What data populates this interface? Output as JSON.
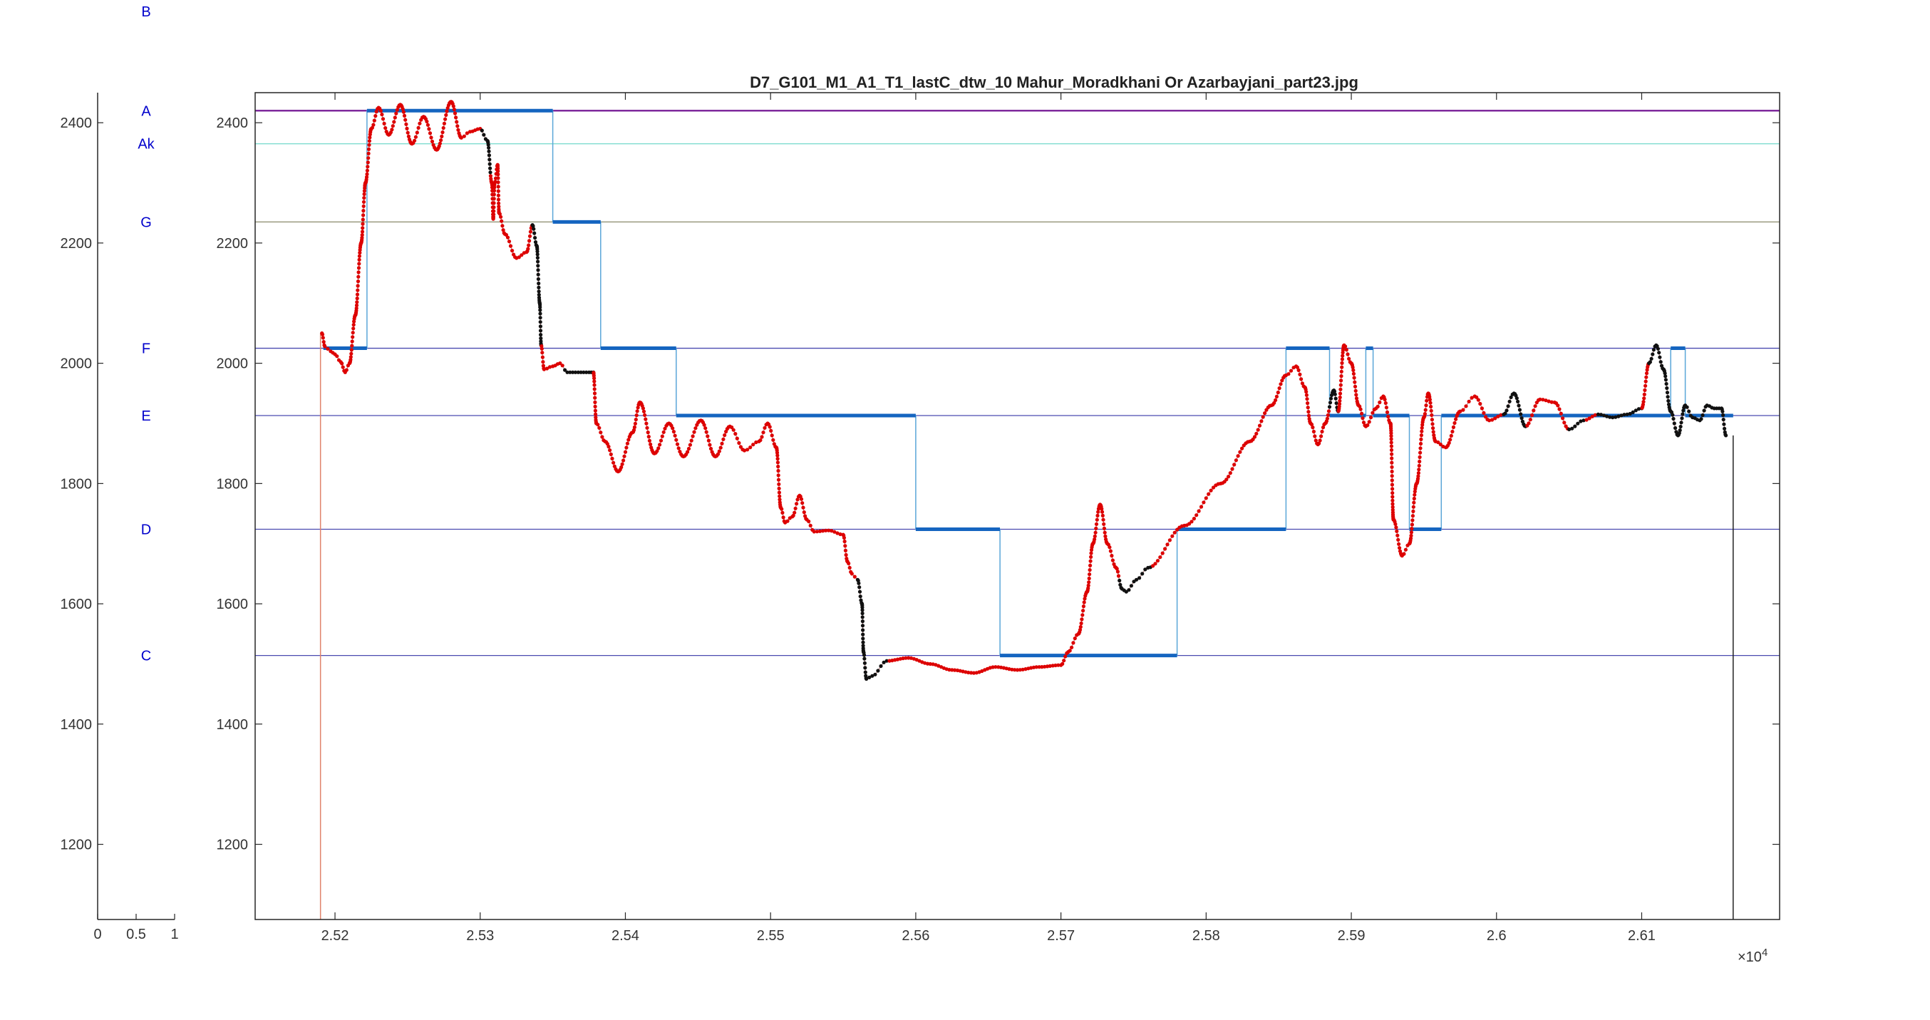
{
  "chart_data": [
    {
      "type": "scatter",
      "panel": "note-axis",
      "title": "",
      "xticks": [
        "0",
        "0.5",
        "1"
      ],
      "yticks": [
        1200,
        1400,
        1600,
        1800,
        2000,
        2200,
        2400
      ],
      "xlim": [
        0,
        1
      ],
      "ylim": [
        1075,
        2450
      ],
      "note_labels": [
        {
          "label": "B",
          "y": 2585
        },
        {
          "label": "A",
          "y": 2420
        },
        {
          "label": "Ak",
          "y": 2365
        },
        {
          "label": "G",
          "y": 2235
        },
        {
          "label": "F",
          "y": 2025
        },
        {
          "label": "E",
          "y": 1913
        },
        {
          "label": "D",
          "y": 1724
        },
        {
          "label": "C",
          "y": 1514
        }
      ]
    },
    {
      "type": "line",
      "panel": "main",
      "title": "D7_G101_M1_A1_T1_lastC_dtw_10 Mahur_Moradkhani Or Azarbayjani_part23.jpg",
      "xlabel": "",
      "ylabel": "",
      "x_exponent_label": "×10",
      "x_exponent_power": "4",
      "xlim": [
        2.5145,
        2.6195
      ],
      "ylim": [
        1075,
        2450
      ],
      "xticks": [
        "2.52",
        "2.53",
        "2.54",
        "2.55",
        "2.56",
        "2.57",
        "2.58",
        "2.59",
        "2.6",
        "2.61"
      ],
      "xtick_values": [
        2.52,
        2.53,
        2.54,
        2.55,
        2.56,
        2.57,
        2.58,
        2.59,
        2.6,
        2.61
      ],
      "yticks": [
        1200,
        1400,
        1600,
        1800,
        2000,
        2200,
        2400
      ],
      "grid": false,
      "reference_lines": [
        {
          "note": "A",
          "y": 2420,
          "color": "#7f2a9c"
        },
        {
          "note": "Ak",
          "y": 2365,
          "color": "#7fdcd0"
        },
        {
          "note": "G",
          "y": 2235,
          "color": "#8a8a6a"
        },
        {
          "note": "F",
          "y": 2025,
          "color": "#4a4ab0"
        },
        {
          "note": "E",
          "y": 1913,
          "color": "#4a4ab0"
        },
        {
          "note": "D",
          "y": 1724,
          "color": "#4a4ab0"
        },
        {
          "note": "C",
          "y": 1514,
          "color": "#4a4ab0"
        }
      ],
      "onset_line_x": 2.519,
      "end_line_x": 2.6163,
      "segments": [
        {
          "x0": 2.5192,
          "x1": 2.5222,
          "y": 2025
        },
        {
          "x0": 2.5222,
          "x1": 2.535,
          "y": 2420
        },
        {
          "x0": 2.535,
          "x1": 2.5383,
          "y": 2235
        },
        {
          "x0": 2.5383,
          "x1": 2.5435,
          "y": 2025
        },
        {
          "x0": 2.5435,
          "x1": 2.56,
          "y": 1913
        },
        {
          "x0": 2.56,
          "x1": 2.5658,
          "y": 1724
        },
        {
          "x0": 2.5658,
          "x1": 2.578,
          "y": 1514
        },
        {
          "x0": 2.578,
          "x1": 2.5855,
          "y": 1724
        },
        {
          "x0": 2.5855,
          "x1": 2.5885,
          "y": 2025
        },
        {
          "x0": 2.5885,
          "x1": 2.591,
          "y": 1913
        },
        {
          "x0": 2.591,
          "x1": 2.5915,
          "y": 2025
        },
        {
          "x0": 2.5915,
          "x1": 2.594,
          "y": 1913
        },
        {
          "x0": 2.594,
          "x1": 2.5962,
          "y": 1724
        },
        {
          "x0": 2.5962,
          "x1": 2.612,
          "y": 1913
        },
        {
          "x0": 2.612,
          "x1": 2.613,
          "y": 2025
        },
        {
          "x0": 2.613,
          "x1": 2.6163,
          "y": 1913
        }
      ],
      "pitch_anchors": [
        [
          2.5191,
          2050
        ],
        [
          2.5193,
          2028
        ],
        [
          2.5197,
          2020
        ],
        [
          2.52,
          2015
        ],
        [
          2.5204,
          2002
        ],
        [
          2.5207,
          1985
        ],
        [
          2.521,
          2000
        ],
        [
          2.5214,
          2080
        ],
        [
          2.5218,
          2200
        ],
        [
          2.5221,
          2300
        ],
        [
          2.5225,
          2390
        ],
        [
          2.523,
          2425
        ],
        [
          2.5237,
          2380
        ],
        [
          2.5245,
          2430
        ],
        [
          2.5253,
          2365
        ],
        [
          2.5261,
          2410
        ],
        [
          2.527,
          2355
        ],
        [
          2.528,
          2435
        ],
        [
          2.5287,
          2375
        ],
        [
          2.5293,
          2385
        ],
        [
          2.53,
          2390
        ],
        [
          2.5305,
          2370
        ],
        [
          2.5308,
          2300
        ],
        [
          2.5309,
          2240
        ],
        [
          2.531,
          2300
        ],
        [
          2.5312,
          2330
        ],
        [
          2.5313,
          2250
        ],
        [
          2.5317,
          2215
        ],
        [
          2.5325,
          2175
        ],
        [
          2.5332,
          2185
        ],
        [
          2.5336,
          2230
        ],
        [
          2.5339,
          2195
        ],
        [
          2.5341,
          2100
        ],
        [
          2.5342,
          2030
        ],
        [
          2.5344,
          1990
        ],
        [
          2.535,
          1995
        ],
        [
          2.5355,
          2000
        ],
        [
          2.536,
          1985
        ],
        [
          2.5375,
          1985
        ],
        [
          2.5378,
          1985
        ],
        [
          2.538,
          1900
        ],
        [
          2.5386,
          1870
        ],
        [
          2.5395,
          1820
        ],
        [
          2.5405,
          1885
        ],
        [
          2.541,
          1935
        ],
        [
          2.542,
          1850
        ],
        [
          2.543,
          1900
        ],
        [
          2.544,
          1845
        ],
        [
          2.5452,
          1905
        ],
        [
          2.5462,
          1845
        ],
        [
          2.5472,
          1895
        ],
        [
          2.5482,
          1855
        ],
        [
          2.5492,
          1870
        ],
        [
          2.5498,
          1900
        ],
        [
          2.5504,
          1860
        ],
        [
          2.5507,
          1760
        ],
        [
          2.551,
          1735
        ],
        [
          2.5515,
          1745
        ],
        [
          2.552,
          1780
        ],
        [
          2.5525,
          1740
        ],
        [
          2.553,
          1720
        ],
        [
          2.554,
          1722
        ],
        [
          2.555,
          1715
        ],
        [
          2.5553,
          1670
        ],
        [
          2.5556,
          1650
        ],
        [
          2.556,
          1640
        ],
        [
          2.5563,
          1600
        ],
        [
          2.5564,
          1520
        ],
        [
          2.5566,
          1475
        ],
        [
          2.557,
          1480
        ],
        [
          2.558,
          1505
        ],
        [
          2.5595,
          1510
        ],
        [
          2.561,
          1500
        ],
        [
          2.5625,
          1490
        ],
        [
          2.564,
          1485
        ],
        [
          2.5655,
          1495
        ],
        [
          2.567,
          1490
        ],
        [
          2.5685,
          1495
        ],
        [
          2.57,
          1498
        ],
        [
          2.5705,
          1520
        ],
        [
          2.5712,
          1550
        ],
        [
          2.5718,
          1620
        ],
        [
          2.5722,
          1700
        ],
        [
          2.5727,
          1765
        ],
        [
          2.5732,
          1700
        ],
        [
          2.5738,
          1660
        ],
        [
          2.5742,
          1625
        ],
        [
          2.5745,
          1620
        ],
        [
          2.5752,
          1640
        ],
        [
          2.576,
          1660
        ],
        [
          2.5785,
          1730
        ],
        [
          2.581,
          1800
        ],
        [
          2.583,
          1870
        ],
        [
          2.5845,
          1930
        ],
        [
          2.5855,
          1980
        ],
        [
          2.5862,
          1995
        ],
        [
          2.5868,
          1960
        ],
        [
          2.5872,
          1900
        ],
        [
          2.5877,
          1865
        ],
        [
          2.5882,
          1900
        ],
        [
          2.5888,
          1955
        ],
        [
          2.5891,
          1920
        ],
        [
          2.5895,
          2030
        ],
        [
          2.59,
          2000
        ],
        [
          2.5905,
          1930
        ],
        [
          2.591,
          1895
        ],
        [
          2.5917,
          1925
        ],
        [
          2.5922,
          1945
        ],
        [
          2.5927,
          1900
        ],
        [
          2.5929,
          1740
        ],
        [
          2.5935,
          1680
        ],
        [
          2.594,
          1700
        ],
        [
          2.5945,
          1800
        ],
        [
          2.595,
          1910
        ],
        [
          2.5953,
          1950
        ],
        [
          2.5958,
          1870
        ],
        [
          2.5965,
          1860
        ],
        [
          2.5975,
          1920
        ],
        [
          2.5985,
          1945
        ],
        [
          2.5995,
          1905
        ],
        [
          2.6005,
          1915
        ],
        [
          2.6012,
          1950
        ],
        [
          2.602,
          1895
        ],
        [
          2.603,
          1940
        ],
        [
          2.604,
          1935
        ],
        [
          2.605,
          1890
        ],
        [
          2.606,
          1905
        ],
        [
          2.607,
          1915
        ],
        [
          2.608,
          1910
        ],
        [
          2.609,
          1915
        ],
        [
          2.61,
          1925
        ],
        [
          2.6105,
          2000
        ],
        [
          2.611,
          2030
        ],
        [
          2.6115,
          1990
        ],
        [
          2.612,
          1920
        ],
        [
          2.6125,
          1880
        ],
        [
          2.613,
          1930
        ],
        [
          2.6135,
          1910
        ],
        [
          2.614,
          1905
        ],
        [
          2.6145,
          1930
        ],
        [
          2.615,
          1925
        ],
        [
          2.6155,
          1925
        ],
        [
          2.6158,
          1880
        ]
      ],
      "black_ranges": [
        [
          2.5301,
          2.5307
        ],
        [
          2.5336,
          2.5342
        ],
        [
          2.5357,
          2.5378
        ],
        [
          2.556,
          2.5566
        ],
        [
          2.5566,
          2.558
        ],
        [
          2.574,
          2.5763
        ],
        [
          2.5885,
          2.5891
        ],
        [
          2.6005,
          2.602
        ],
        [
          2.605,
          2.606
        ],
        [
          2.607,
          2.61
        ],
        [
          2.6105,
          2.616
        ]
      ],
      "colors": {
        "pitch_red": "#dd0000",
        "pitch_black": "#111111",
        "segment_blue": "#1565c0",
        "step_line": "#5aa6d8",
        "onset_line": "#e0826a",
        "end_line": "#222222",
        "note_label": "#0000cc",
        "axis": "#262626"
      }
    }
  ]
}
